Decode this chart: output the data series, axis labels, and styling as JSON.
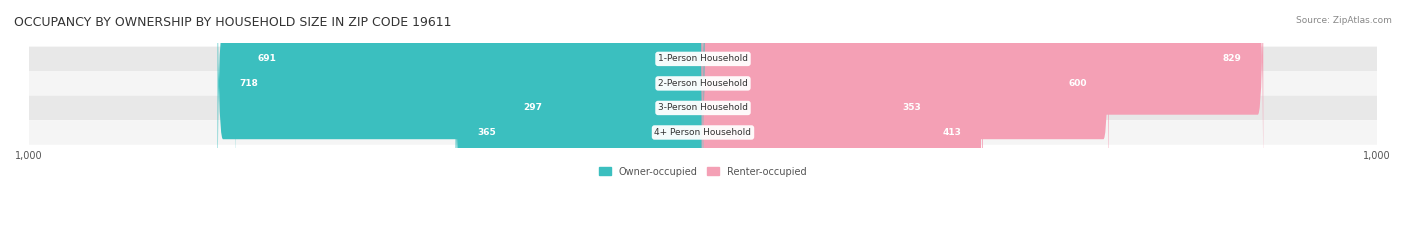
{
  "title": "OCCUPANCY BY OWNERSHIP BY HOUSEHOLD SIZE IN ZIP CODE 19611",
  "source": "Source: ZipAtlas.com",
  "categories": [
    "1-Person Household",
    "2-Person Household",
    "3-Person Household",
    "4+ Person Household"
  ],
  "owner_values": [
    691,
    718,
    297,
    365
  ],
  "renter_values": [
    829,
    600,
    353,
    413
  ],
  "owner_color": "#3bbfbf",
  "renter_color": "#f4a0b5",
  "bar_bg_color": "#f0f0f0",
  "row_bg_colors": [
    "#e8e8e8",
    "#f5f5f5",
    "#e8e8e8",
    "#f5f5f5"
  ],
  "axis_max": 1000,
  "x_tick_labels": [
    "1,000",
    "1,000"
  ],
  "label_fontsize": 7,
  "title_fontsize": 9,
  "legend_fontsize": 7,
  "value_fontsize": 6.5,
  "category_fontsize": 6.5,
  "figsize": [
    14.06,
    2.33
  ],
  "dpi": 100
}
